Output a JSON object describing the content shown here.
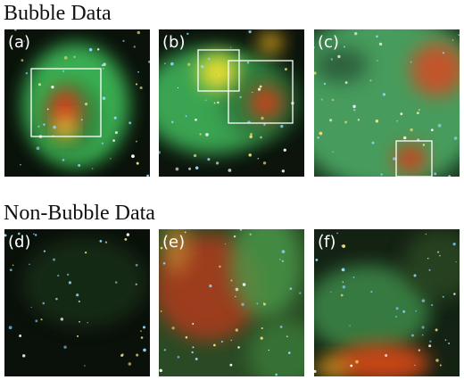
{
  "sections": [
    {
      "title": "Bubble Data",
      "panels": [
        {
          "label": "(a)"
        },
        {
          "label": "(b)"
        },
        {
          "label": "(c)"
        }
      ]
    },
    {
      "title": "Non-Bubble Data",
      "panels": [
        {
          "label": "(d)"
        },
        {
          "label": "(e)"
        },
        {
          "label": "(f)"
        }
      ]
    }
  ]
}
